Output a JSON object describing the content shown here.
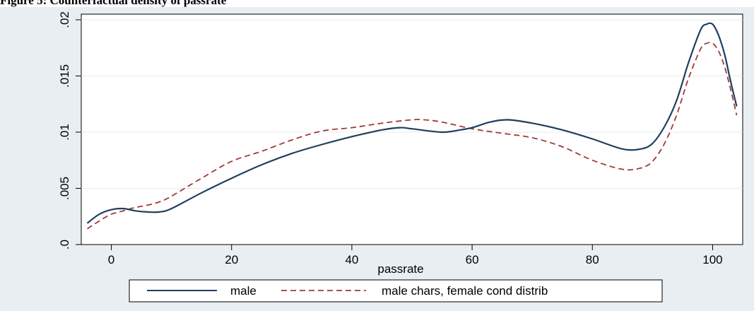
{
  "caption": "Figure 5: Counterfactual density of passrate",
  "chart_data": {
    "type": "line",
    "xlabel": "passrate",
    "ylabel": "",
    "xlim": [
      -5,
      105
    ],
    "ylim": [
      0,
      0.0205
    ],
    "x_ticks": [
      0,
      20,
      40,
      60,
      80,
      100
    ],
    "x_tick_labels": [
      "0",
      "20",
      "40",
      "60",
      "80",
      "100"
    ],
    "y_ticks": [
      0,
      0.005,
      0.01,
      0.015,
      0.02
    ],
    "y_tick_labels": [
      ".0",
      ".005",
      ".01",
      ".015",
      ".02"
    ],
    "grid": "horizontal",
    "legend_position": "bottom",
    "series": [
      {
        "name": "male",
        "color": "#1f3f5f",
        "dash": "solid",
        "x": [
          -4,
          -2,
          0,
          2,
          4,
          6,
          8,
          10,
          15,
          20,
          25,
          30,
          35,
          40,
          45,
          48,
          50,
          55,
          58,
          60,
          63,
          66,
          70,
          75,
          80,
          85,
          88,
          90,
          92,
          94,
          96,
          98,
          99,
          100,
          101,
          102,
          103,
          104
        ],
        "y": [
          0.0019,
          0.0027,
          0.0031,
          0.0032,
          0.003,
          0.0029,
          0.0029,
          0.0032,
          0.0046,
          0.0059,
          0.0071,
          0.0081,
          0.0089,
          0.0096,
          0.0102,
          0.0104,
          0.0103,
          0.01,
          0.0102,
          0.0104,
          0.0109,
          0.0111,
          0.0108,
          0.0102,
          0.0094,
          0.0085,
          0.0085,
          0.009,
          0.0105,
          0.0128,
          0.0162,
          0.0191,
          0.0196,
          0.0196,
          0.0186,
          0.0169,
          0.0145,
          0.0123
        ]
      },
      {
        "name": "male chars, female cond distrib",
        "color": "#a03a3a",
        "dash": "dashed",
        "x": [
          -4,
          -2,
          0,
          2,
          4,
          6,
          8,
          10,
          15,
          20,
          25,
          30,
          35,
          40,
          45,
          50,
          52,
          55,
          60,
          65,
          70,
          75,
          80,
          85,
          88,
          90,
          92,
          94,
          96,
          98,
          99,
          100,
          101,
          102,
          103,
          104
        ],
        "y": [
          0.0014,
          0.0021,
          0.0027,
          0.003,
          0.0033,
          0.0035,
          0.0038,
          0.0043,
          0.0059,
          0.0074,
          0.0083,
          0.0093,
          0.0101,
          0.0104,
          0.0108,
          0.0111,
          0.0111,
          0.0109,
          0.0103,
          0.0099,
          0.0095,
          0.0087,
          0.0075,
          0.0067,
          0.0068,
          0.0074,
          0.009,
          0.0115,
          0.0148,
          0.0174,
          0.0179,
          0.0179,
          0.0172,
          0.0158,
          0.0138,
          0.0115
        ]
      }
    ]
  }
}
